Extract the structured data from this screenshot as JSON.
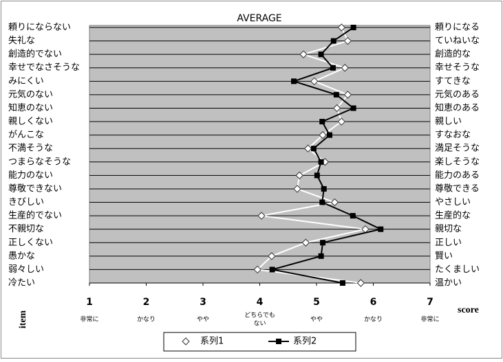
{
  "chart_data": {
    "type": "profile",
    "title": "AVERAGE",
    "left_labels": [
      "頼りにならない",
      "失礼な",
      "創造的でない",
      "幸せでなさそうな",
      "みにくい",
      "元気のない",
      "知恵のない",
      "親しくない",
      "がんこな",
      "不満そうな",
      "つまらなそうな",
      "能力のない",
      "尊敬できない",
      "きびしい",
      "生産的でない",
      "不親切な",
      "正しくない",
      "愚かな",
      "弱々しい",
      "冷たい"
    ],
    "right_labels": [
      "頼りになる",
      "ていねいな",
      "創造的な",
      "幸せそうな",
      "すてきな",
      "元気のある",
      "知恵のある",
      "親しい",
      "すなおな",
      "満足そうな",
      "楽しそうな",
      "能力のある",
      "尊敬できる",
      "やさしい",
      "生産的な",
      "親切な",
      "正しい",
      "賢い",
      "たくましい",
      "温かい"
    ],
    "xlim": [
      1,
      7
    ],
    "xticks": [
      1,
      2,
      3,
      4,
      5,
      6,
      7
    ],
    "scale_labels": [
      [
        "非常に"
      ],
      [
        "かなり"
      ],
      [
        "やや"
      ],
      [
        "どちらでも",
        "ない"
      ],
      [
        "やや"
      ],
      [
        "かなり"
      ],
      [
        "非常に"
      ]
    ],
    "x_label": "score",
    "y_label": "item",
    "grid": true,
    "series": [
      {
        "name": "系列1",
        "color": "#ffffff",
        "marker": "diamond",
        "values": [
          5.44,
          5.55,
          4.77,
          5.5,
          4.96,
          5.55,
          5.36,
          5.44,
          5.11,
          4.85,
          5.15,
          4.7,
          4.66,
          5.32,
          4.03,
          5.86,
          4.81,
          4.21,
          3.96,
          5.78
        ]
      },
      {
        "name": "系列2",
        "color": "#000000",
        "marker": "square",
        "values": [
          5.65,
          5.3,
          5.08,
          5.29,
          4.6,
          5.35,
          5.65,
          5.1,
          5.23,
          4.95,
          5.08,
          5.01,
          5.13,
          5.1,
          5.64,
          6.13,
          5.11,
          5.08,
          4.22,
          5.46
        ]
      }
    ]
  }
}
